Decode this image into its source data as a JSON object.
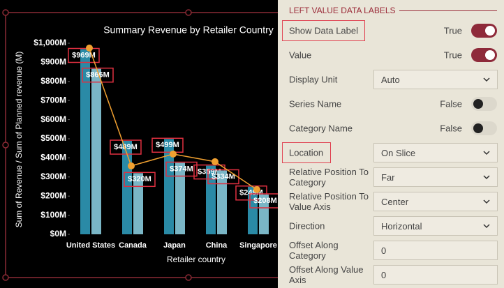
{
  "chart_data": {
    "type": "bar",
    "title": "Summary Revenue by Retailer Country",
    "x_label": "Retailer country",
    "y_label": "Sum of Revenue / Sum of Planned revenue (M)",
    "categories": [
      "United States",
      "Canada",
      "Japan",
      "China",
      "Singapore"
    ],
    "series": [
      {
        "type": "bar",
        "color": "#2a8aa6",
        "values": [
          969,
          489,
          499,
          359,
          249
        ],
        "value_labels": [
          "$969M",
          "$489M",
          "$499M",
          "$359M",
          "$249M"
        ]
      },
      {
        "type": "bar",
        "color": "#7ab6c6",
        "values": [
          866,
          320,
          374,
          334,
          208
        ],
        "value_labels": [
          "$866M",
          "$320M",
          "$374M",
          "$334M",
          "$208M"
        ]
      },
      {
        "type": "line",
        "color": "#f0a030",
        "values": [
          975,
          358,
          420,
          380,
          234
        ]
      }
    ],
    "ylim": [
      0,
      1000
    ],
    "yticks": [
      {
        "value": 0,
        "label": "$0M"
      },
      {
        "value": 100,
        "label": "$100M"
      },
      {
        "value": 200,
        "label": "$200M"
      },
      {
        "value": 300,
        "label": "$300M"
      },
      {
        "value": 400,
        "label": "$400M"
      },
      {
        "value": 500,
        "label": "$500M"
      },
      {
        "value": 600,
        "label": "$600M"
      },
      {
        "value": 700,
        "label": "$700M"
      },
      {
        "value": 800,
        "label": "$800M"
      },
      {
        "value": 900,
        "label": "$900M"
      },
      {
        "value": 1000,
        "label": "$1,000M"
      }
    ]
  },
  "panel": {
    "section_title": "LEFT VALUE DATA LABELS",
    "rows": [
      {
        "label": "Show Data Label",
        "value": "True",
        "control": "toggle",
        "on": true,
        "highlighted": true
      },
      {
        "label": "Value",
        "value": "True",
        "control": "toggle",
        "on": true
      },
      {
        "label": "Display Unit",
        "value": "Auto",
        "control": "dropdown"
      },
      {
        "label": "Series Name",
        "value": "False",
        "control": "toggle",
        "on": false
      },
      {
        "label": "Category Name",
        "value": "False",
        "control": "toggle",
        "on": false
      },
      {
        "label": "Location",
        "value": "On Slice",
        "control": "dropdown",
        "highlighted": true
      },
      {
        "label": "Relative Position To Category",
        "value": "Far",
        "control": "dropdown"
      },
      {
        "label": "Relative Position To Value Axis",
        "value": "Center",
        "control": "dropdown"
      },
      {
        "label": "Direction",
        "value": "Horizontal",
        "control": "dropdown"
      },
      {
        "label": "Offset Along Category",
        "value": "0",
        "control": "input"
      },
      {
        "label": "Offset Along Value Axis",
        "value": "0",
        "control": "input"
      }
    ]
  }
}
